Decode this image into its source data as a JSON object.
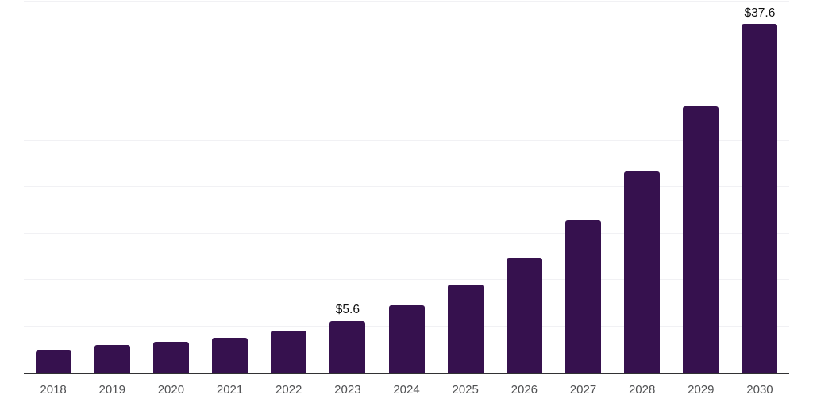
{
  "chart_data": {
    "type": "bar",
    "title": "",
    "xlabel": "",
    "ylabel": "",
    "categories": [
      "2018",
      "2019",
      "2020",
      "2021",
      "2022",
      "2023",
      "2024",
      "2025",
      "2026",
      "2027",
      "2028",
      "2029",
      "2030"
    ],
    "values": [
      2.4,
      3.0,
      3.3,
      3.8,
      4.5,
      5.6,
      7.3,
      9.5,
      12.4,
      16.4,
      21.7,
      28.7,
      37.6
    ],
    "data_labels": {
      "2023": "$5.6",
      "2030": "$37.6"
    },
    "ylim": [
      0,
      40
    ],
    "grid_step": 5,
    "grid": "horizontal",
    "legend": "none",
    "colors": {
      "bar": "#36114e",
      "gridline": "#f1f1f4",
      "axis_line": "#323234",
      "tick_label": "#505153",
      "data_label": "#0f0f0f",
      "background": "#ffffff"
    }
  }
}
